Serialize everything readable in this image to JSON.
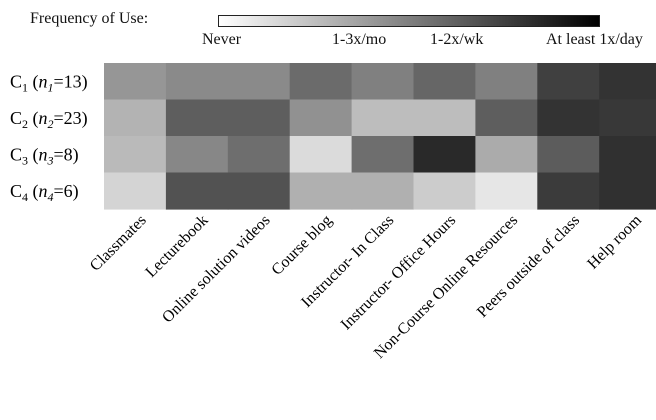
{
  "legend": {
    "title": "Frequency of Use:",
    "ticks": [
      {
        "label": "Never"
      },
      {
        "label": "1-3x/mo"
      },
      {
        "label": "1-2x/wk"
      },
      {
        "label": "At least 1x/day"
      }
    ],
    "gradient_colors": [
      "#ffffff",
      "#000000"
    ]
  },
  "chart_data": {
    "type": "heatmap",
    "title": "",
    "xlabel": "",
    "ylabel": "",
    "color_scale": {
      "min": "Never",
      "max": "At least 1x/day",
      "low_color": "#ffffff",
      "high_color": "#000000"
    },
    "rows": [
      {
        "main": "C",
        "sub": "1",
        "n_var": "n",
        "n_sub": "1",
        "n_val": "13"
      },
      {
        "main": "C",
        "sub": "2",
        "n_var": "n",
        "n_sub": "2",
        "n_val": "23"
      },
      {
        "main": "C",
        "sub": "3",
        "n_var": "n",
        "n_sub": "3",
        "n_val": "8"
      },
      {
        "main": "C",
        "sub": "4",
        "n_var": "n",
        "n_sub": "4",
        "n_val": "6"
      }
    ],
    "columns": [
      "Classmates",
      "Lecturebook",
      "Online solution videos",
      "Course blog",
      "Instructor- In Class",
      "Instructor- Office Hours",
      "Non-Course Online Resources",
      "Peers outside of class",
      "Help room"
    ],
    "values": [
      [
        0.41,
        0.46,
        0.46,
        0.58,
        0.5,
        0.6,
        0.5,
        0.75,
        0.8
      ],
      [
        0.3,
        0.63,
        0.63,
        0.43,
        0.26,
        0.26,
        0.63,
        0.8,
        0.78
      ],
      [
        0.27,
        0.47,
        0.57,
        0.14,
        0.57,
        0.84,
        0.33,
        0.64,
        0.81
      ],
      [
        0.17,
        0.68,
        0.68,
        0.31,
        0.31,
        0.2,
        0.1,
        0.77,
        0.81
      ]
    ]
  }
}
